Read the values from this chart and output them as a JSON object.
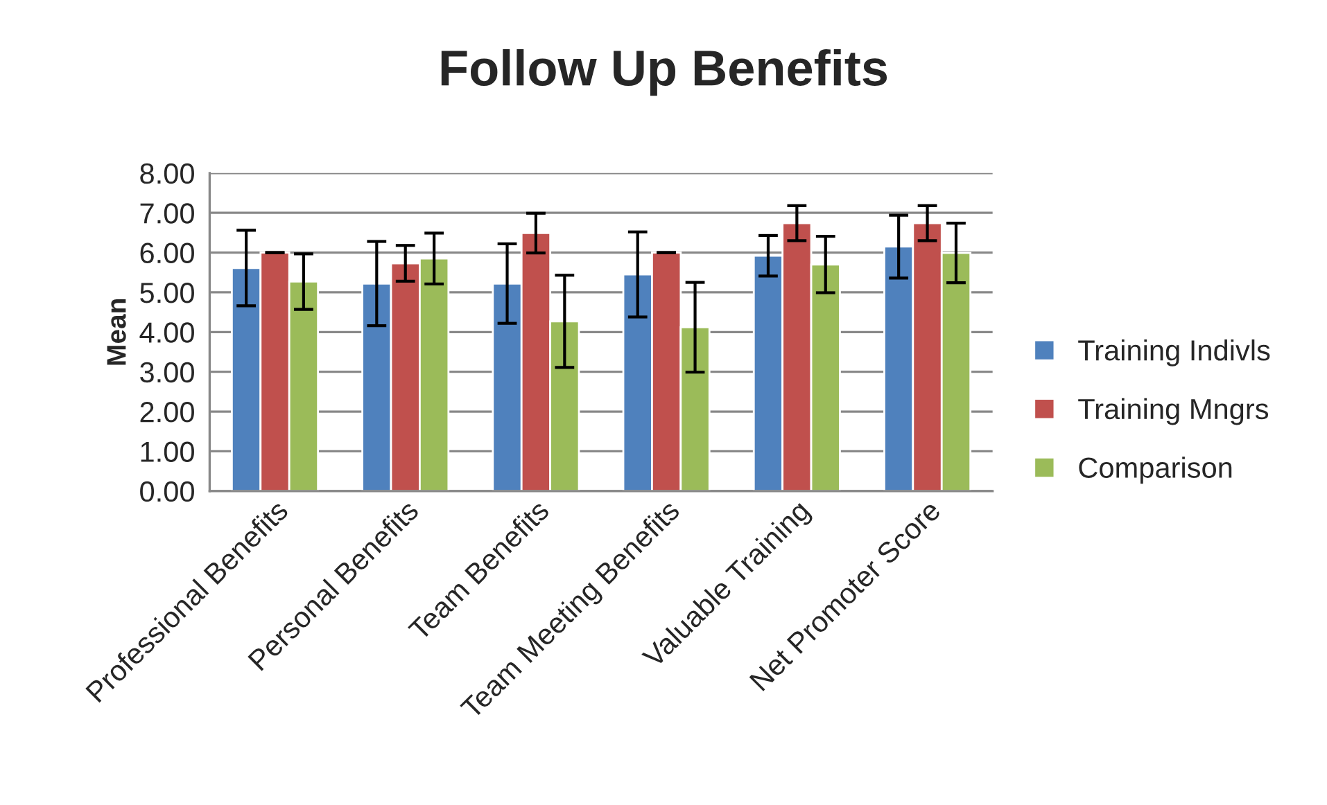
{
  "chart_data": {
    "type": "bar",
    "title": "Follow Up Benefits",
    "ylabel": "Mean",
    "categories": [
      "Professional Benefits",
      "Personal Benefits",
      "Team Benefits",
      "Team Meeting Benefits",
      "Valuable Training",
      "Net Promoter Score"
    ],
    "series": [
      {
        "name": "Training Indivls",
        "color": "#4f81bd",
        "values": [
          5.61,
          5.22,
          5.22,
          5.45,
          5.92,
          6.15
        ],
        "errors": [
          0.95,
          1.06,
          1.0,
          1.07,
          0.51,
          0.79
        ]
      },
      {
        "name": "Training Mngrs",
        "color": "#c0504d",
        "values": [
          6.0,
          5.73,
          6.49,
          6.0,
          6.74,
          6.74
        ],
        "errors": [
          0,
          0.45,
          0.5,
          0,
          0.44,
          0.44
        ]
      },
      {
        "name": "Comparison",
        "color": "#9bbb59",
        "values": [
          5.27,
          5.85,
          4.27,
          4.12,
          5.7,
          5.99
        ],
        "errors": [
          0.7,
          0.64,
          1.16,
          1.13,
          0.71,
          0.75
        ]
      }
    ],
    "ylim": [
      0,
      8
    ],
    "yticks": [
      {
        "value": 0,
        "label": "0.00"
      },
      {
        "value": 1,
        "label": "1.00"
      },
      {
        "value": 2,
        "label": "2.00"
      },
      {
        "value": 3,
        "label": "3.00"
      },
      {
        "value": 4,
        "label": "4.00"
      },
      {
        "value": 5,
        "label": "5.00"
      },
      {
        "value": 6,
        "label": "6.00"
      },
      {
        "value": 7,
        "label": "7.00"
      },
      {
        "value": 8,
        "label": "8.00"
      }
    ],
    "grid": "y",
    "legend": "right"
  }
}
